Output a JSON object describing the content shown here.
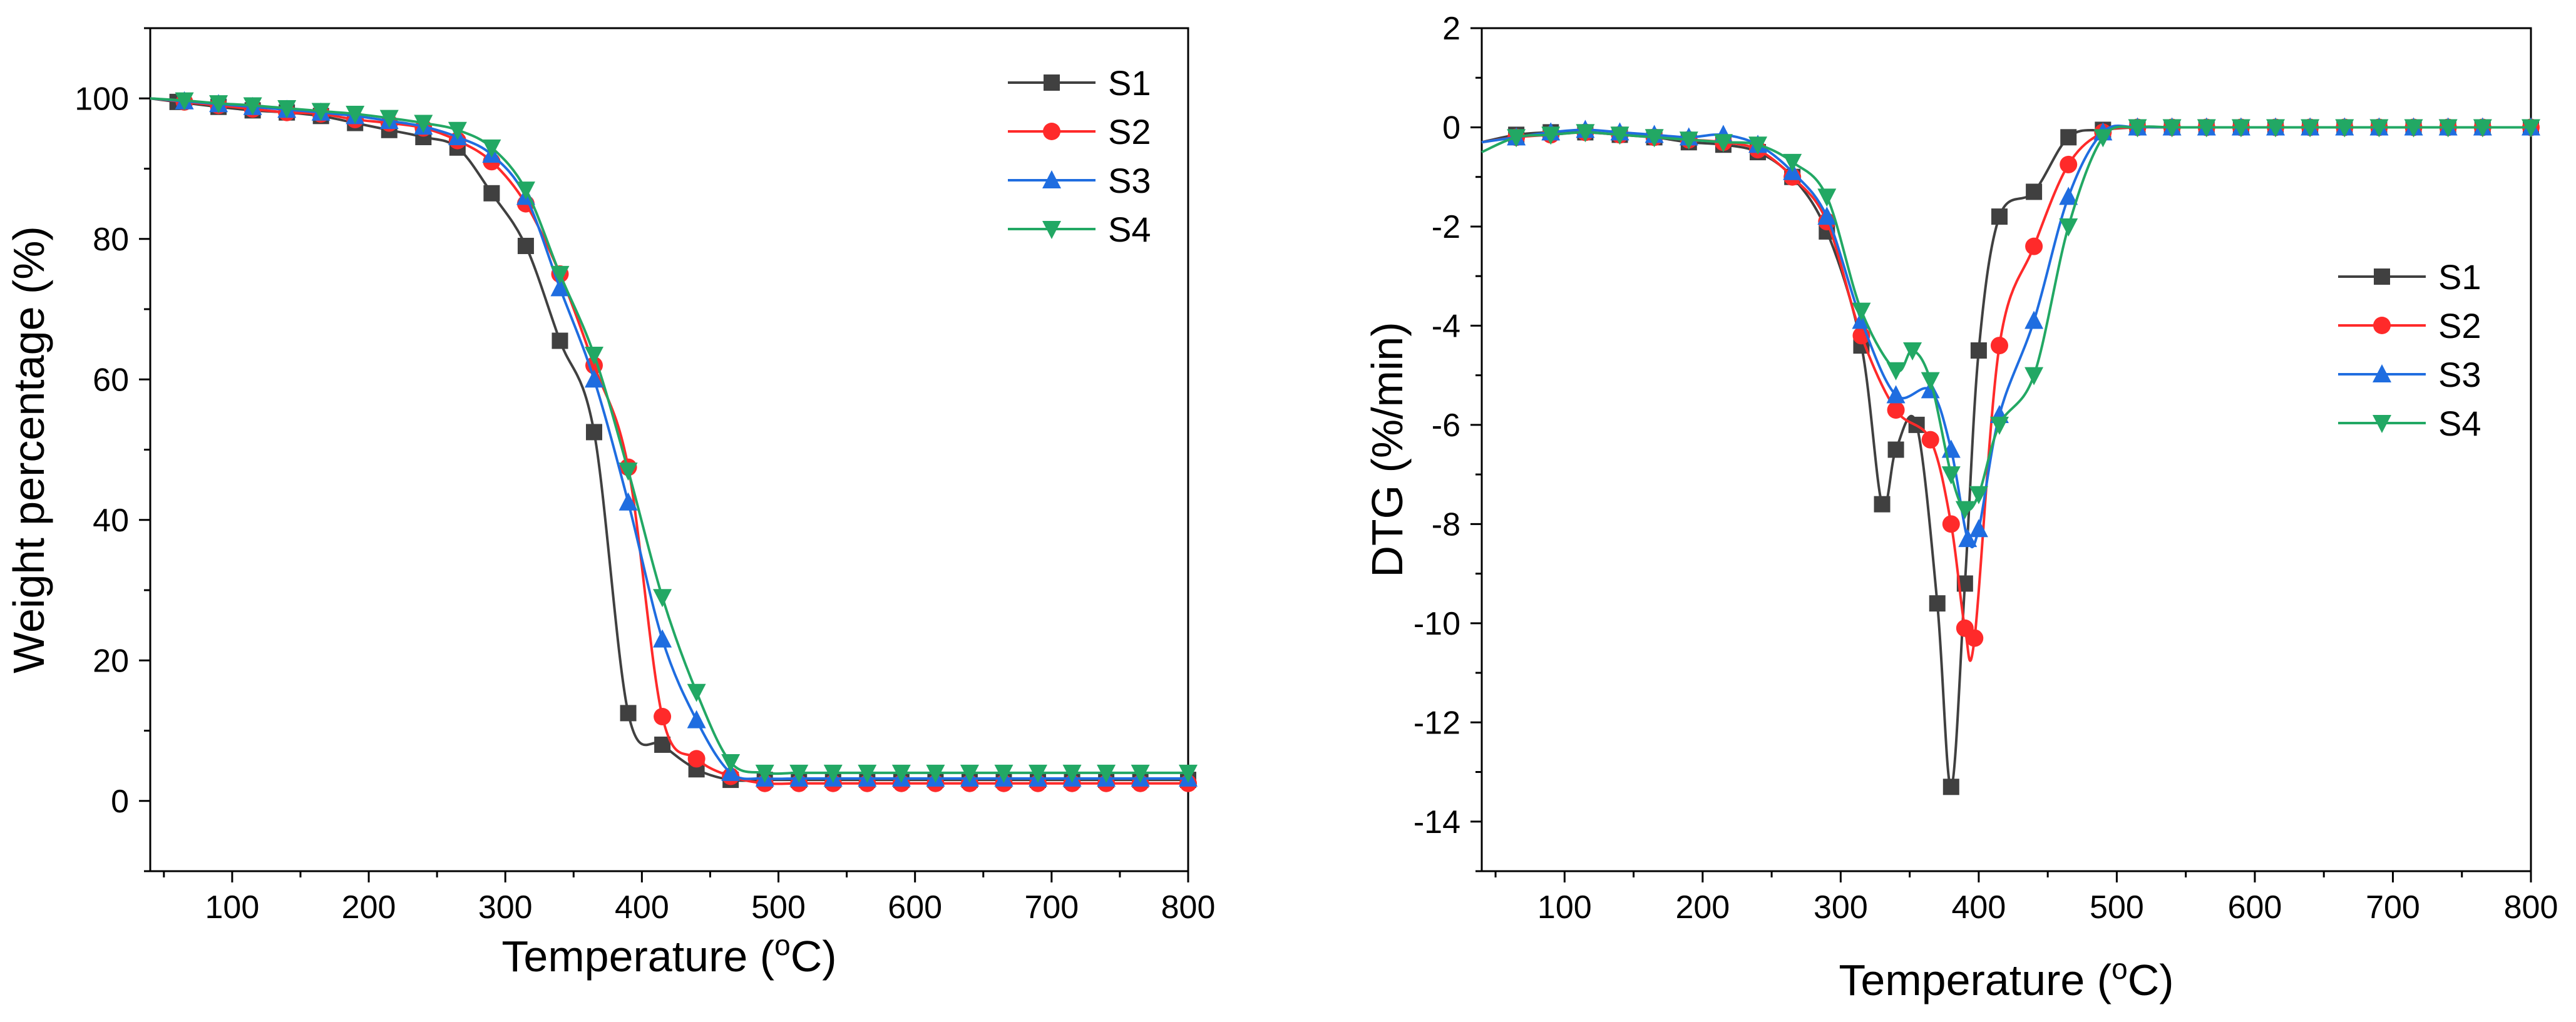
{
  "chart_data": [
    {
      "type": "line",
      "xlabel": "Temperature (°C)",
      "xlabel_parts": [
        "Temperature (",
        "o",
        "C)"
      ],
      "ylabel": "Weight percentage (%)",
      "xlim": [
        40,
        800
      ],
      "ylim": [
        -10,
        110
      ],
      "xticks": [
        100,
        200,
        300,
        400,
        500,
        600,
        700,
        800
      ],
      "yticks": [
        0,
        20,
        40,
        60,
        80,
        100
      ],
      "legend_position": "top-right",
      "series": [
        {
          "name": "S1",
          "color": "#404040",
          "marker": "square",
          "x": [
            40,
            60,
            90,
            115,
            140,
            165,
            190,
            215,
            240,
            265,
            290,
            315,
            340,
            365,
            390,
            415,
            440,
            465,
            490,
            515,
            540,
            565,
            590,
            615,
            640,
            665,
            690,
            715,
            740,
            765,
            800
          ],
          "y": [
            100,
            99.5,
            98.8,
            98.3,
            98,
            97.5,
            96.5,
            95.5,
            94.5,
            93,
            86.5,
            79,
            65.5,
            52.5,
            12.5,
            8,
            4.5,
            3,
            3,
            3,
            3,
            3,
            3,
            3,
            3,
            3,
            3,
            3,
            3,
            3,
            3
          ]
        },
        {
          "name": "S2",
          "color": "#ff2a2a",
          "marker": "circle",
          "x": [
            40,
            65,
            90,
            115,
            140,
            165,
            190,
            215,
            240,
            265,
            290,
            315,
            340,
            365,
            390,
            415,
            440,
            465,
            490,
            515,
            540,
            565,
            590,
            615,
            640,
            665,
            690,
            715,
            740,
            765,
            800
          ],
          "y": [
            100,
            99.5,
            99,
            98.5,
            98,
            97.8,
            97,
            96.5,
            95.8,
            94,
            91,
            85,
            75,
            62,
            47.5,
            12,
            6,
            3.5,
            2.5,
            2.5,
            2.5,
            2.5,
            2.5,
            2.5,
            2.5,
            2.5,
            2.5,
            2.5,
            2.5,
            2.5,
            2.5
          ]
        },
        {
          "name": "S3",
          "color": "#1f6de0",
          "marker": "triangle-up",
          "x": [
            40,
            65,
            90,
            115,
            140,
            165,
            190,
            215,
            240,
            265,
            290,
            315,
            340,
            365,
            390,
            415,
            440,
            465,
            490,
            515,
            540,
            565,
            590,
            615,
            640,
            665,
            690,
            715,
            740,
            765,
            800
          ],
          "y": [
            100,
            99.6,
            99.2,
            98.8,
            98.4,
            98,
            97.5,
            96.8,
            96,
            94.5,
            92,
            86,
            73,
            60,
            42.5,
            23,
            11.5,
            4,
            3.2,
            3.2,
            3.2,
            3.2,
            3.2,
            3.2,
            3.2,
            3.2,
            3.2,
            3.2,
            3.2,
            3.2,
            3.2
          ]
        },
        {
          "name": "S4",
          "color": "#22a864",
          "marker": "triangle-down",
          "x": [
            40,
            65,
            90,
            115,
            140,
            165,
            190,
            215,
            240,
            265,
            290,
            315,
            340,
            365,
            390,
            415,
            440,
            465,
            490,
            515,
            540,
            565,
            590,
            615,
            640,
            665,
            690,
            715,
            740,
            765,
            800
          ],
          "y": [
            100,
            99.7,
            99.3,
            99,
            98.6,
            98.2,
            97.8,
            97.2,
            96.5,
            95.5,
            93,
            87,
            75,
            63.5,
            47,
            29,
            15.5,
            5.5,
            4,
            4,
            4,
            4,
            4,
            4,
            4,
            4,
            4,
            4,
            4,
            4,
            4
          ]
        }
      ]
    },
    {
      "type": "line",
      "xlabel": "Temperature (°C)",
      "xlabel_parts": [
        "Temperature (",
        "o",
        "C)"
      ],
      "ylabel": "DTG (%/min)",
      "xlim": [
        40,
        800
      ],
      "ylim": [
        -15,
        2
      ],
      "xticks": [
        100,
        200,
        300,
        400,
        500,
        600,
        700,
        800
      ],
      "yticks": [
        2,
        0,
        -2,
        -4,
        -6,
        -8,
        -10,
        -12,
        -14
      ],
      "legend_position": "center-right",
      "series": [
        {
          "name": "S1",
          "color": "#404040",
          "marker": "square",
          "x": [
            40,
            65,
            90,
            115,
            140,
            165,
            190,
            215,
            240,
            265,
            290,
            315,
            330,
            340,
            355,
            370,
            380,
            390,
            400,
            415,
            440,
            465,
            490,
            515,
            540,
            565,
            590,
            615,
            640,
            665,
            690,
            715,
            740,
            765,
            800
          ],
          "y": [
            -0.3,
            -0.15,
            -0.1,
            -0.1,
            -0.15,
            -0.2,
            -0.3,
            -0.35,
            -0.5,
            -1.0,
            -2.1,
            -4.4,
            -7.6,
            -6.5,
            -6.0,
            -9.6,
            -13.3,
            -9.2,
            -4.5,
            -1.8,
            -1.3,
            -0.2,
            -0.05,
            0,
            0,
            0,
            0,
            0,
            0,
            0,
            0,
            0,
            0,
            0,
            0
          ]
        },
        {
          "name": "S2",
          "color": "#ff2a2a",
          "marker": "circle",
          "x": [
            40,
            65,
            90,
            115,
            140,
            165,
            190,
            215,
            240,
            265,
            290,
            315,
            340,
            365,
            380,
            390,
            397,
            415,
            440,
            465,
            490,
            515,
            540,
            565,
            590,
            615,
            640,
            665,
            690,
            715,
            740,
            765,
            800
          ],
          "y": [
            -0.3,
            -0.2,
            -0.15,
            -0.1,
            -0.15,
            -0.2,
            -0.25,
            -0.3,
            -0.45,
            -1.0,
            -1.9,
            -4.2,
            -5.7,
            -6.3,
            -8.0,
            -10.1,
            -10.3,
            -4.4,
            -2.4,
            -0.75,
            -0.1,
            0,
            0,
            0,
            0,
            0,
            0,
            0,
            0,
            0,
            0,
            0,
            0
          ]
        },
        {
          "name": "S3",
          "color": "#1f6de0",
          "marker": "triangle-up",
          "x": [
            40,
            65,
            90,
            115,
            140,
            165,
            190,
            215,
            240,
            265,
            290,
            315,
            340,
            365,
            380,
            392,
            400,
            415,
            440,
            465,
            490,
            515,
            540,
            565,
            590,
            615,
            640,
            665,
            690,
            715,
            740,
            765,
            800
          ],
          "y": [
            -0.3,
            -0.2,
            -0.1,
            -0.05,
            -0.1,
            -0.15,
            -0.2,
            -0.15,
            -0.35,
            -0.9,
            -1.8,
            -3.9,
            -5.4,
            -5.3,
            -6.5,
            -8.3,
            -8.1,
            -5.8,
            -3.9,
            -1.4,
            -0.1,
            0,
            0,
            0,
            0,
            0,
            0,
            0,
            0,
            0,
            0,
            0,
            0
          ]
        },
        {
          "name": "S4",
          "color": "#22a864",
          "marker": "triangle-down",
          "x": [
            40,
            65,
            90,
            115,
            140,
            165,
            190,
            215,
            240,
            265,
            290,
            315,
            340,
            352,
            365,
            380,
            390,
            400,
            415,
            440,
            465,
            490,
            515,
            540,
            565,
            590,
            615,
            640,
            665,
            690,
            715,
            740,
            765,
            800
          ],
          "y": [
            -0.5,
            -0.2,
            -0.15,
            -0.1,
            -0.15,
            -0.2,
            -0.25,
            -0.3,
            -0.35,
            -0.7,
            -1.4,
            -3.7,
            -4.9,
            -4.5,
            -5.1,
            -7.0,
            -7.7,
            -7.4,
            -6.0,
            -5.0,
            -2.0,
            -0.2,
            0,
            0,
            0,
            0,
            0,
            0,
            0,
            0,
            0,
            0,
            0,
            0
          ]
        }
      ]
    }
  ]
}
